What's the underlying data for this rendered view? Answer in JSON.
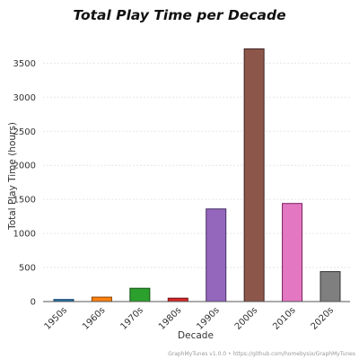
{
  "chart_data": {
    "type": "bar",
    "title": "Total Play Time per Decade",
    "xlabel": "Decade",
    "ylabel": "Total Play Time (hours)",
    "categories": [
      "1950s",
      "1960s",
      "1970s",
      "1980s",
      "1990s",
      "2000s",
      "2010s",
      "2020s"
    ],
    "values": [
      30,
      65,
      195,
      50,
      1360,
      3710,
      1440,
      440
    ],
    "colors": [
      "#1f77b4",
      "#ff7f0e",
      "#2ca02c",
      "#d62728",
      "#9467bd",
      "#8c564b",
      "#e377c2",
      "#7f7f7f"
    ],
    "edge_colors": [
      "#0d3b5e",
      "#8a4300",
      "#155015",
      "#6e1213",
      "#4a2f66",
      "#3f2520",
      "#7a1f5e",
      "#333333"
    ],
    "ylim": [
      0,
      3900
    ],
    "yticks": [
      0,
      500,
      1000,
      1500,
      2000,
      2500,
      3000,
      3500
    ],
    "grid": true,
    "legend": "none"
  },
  "footer": {
    "credit": "GraphMyTunes v1.0.0 • https://github.com/homebysix/GraphMyTunes"
  }
}
